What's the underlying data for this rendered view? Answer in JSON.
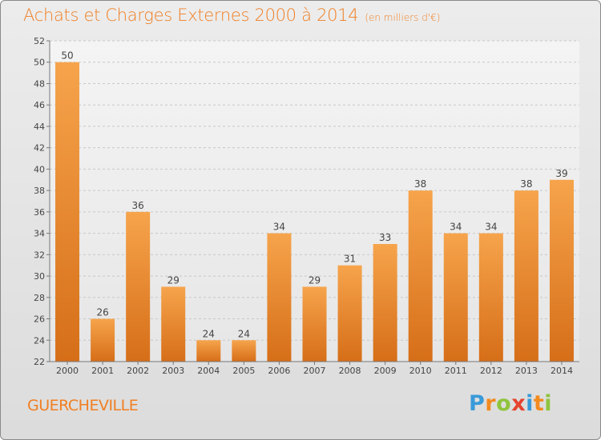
{
  "header": {
    "title": "Achats et Charges Externes 2000 à 2014",
    "subtitle": "(en milliers d'€)"
  },
  "footer": {
    "commune": "GUERCHEVILLE",
    "brand": "Proxiti",
    "brand_letters": [
      "P",
      "r",
      "o",
      "x",
      "i",
      "t",
      "i"
    ],
    "brand_colors": [
      "#3a9ad9",
      "#f28a1f",
      "#8fc43d",
      "#e5432f",
      "#3a9ad9",
      "#f28a1f",
      "#8fc43d"
    ]
  },
  "chart_data": {
    "type": "bar",
    "categories": [
      "2000",
      "2001",
      "2002",
      "2003",
      "2004",
      "2005",
      "2006",
      "2007",
      "2008",
      "2009",
      "2010",
      "2011",
      "2012",
      "2013",
      "2014"
    ],
    "values": [
      50,
      26,
      36,
      29,
      24,
      24,
      34,
      29,
      31,
      33,
      38,
      34,
      34,
      38,
      39
    ],
    "ylim": [
      22,
      52
    ],
    "yticks": [
      22,
      24,
      26,
      28,
      30,
      32,
      34,
      36,
      38,
      40,
      42,
      44,
      46,
      48,
      50,
      52
    ],
    "grid": true,
    "bar_color": "#f39a3f",
    "bar_color_dark": "#d9711c"
  }
}
